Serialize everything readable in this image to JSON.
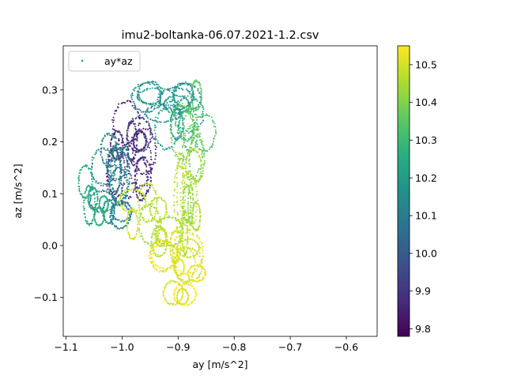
{
  "chart_data": {
    "type": "scatter",
    "title": "imu2-boltanka-06.07.2021-1.2.csv",
    "xlabel": "ay [m/s^2]",
    "ylabel": "az [m/s^2]",
    "xlim": [
      -1.105,
      -0.545
    ],
    "ylim": [
      -0.175,
      0.385
    ],
    "xticks": [
      -1.1,
      -1.0,
      -0.9,
      -0.8,
      -0.7,
      -0.6
    ],
    "xtick_labels": [
      "−1.1",
      "−1.0",
      "−0.9",
      "−0.8",
      "−0.7",
      "−0.6"
    ],
    "yticks": [
      -0.1,
      0.0,
      0.1,
      0.2,
      0.3
    ],
    "ytick_labels": [
      "−0.1",
      "0.0",
      "0.1",
      "0.2",
      "0.3"
    ],
    "legend": {
      "label": "ay*az",
      "location": "upper-left"
    },
    "colorbar": {
      "colormap": "viridis",
      "range": [
        9.78,
        10.55
      ],
      "ticks": [
        9.8,
        9.9,
        10.0,
        10.1,
        10.2,
        10.3,
        10.4,
        10.5
      ],
      "tick_labels": [
        "9.8",
        "9.9",
        "10.0",
        "10.1",
        "10.2",
        "10.3",
        "10.4",
        "10.5"
      ]
    },
    "grid": false,
    "series": [
      {
        "name": "ay*az",
        "color_by": "|a| [colorbar]",
        "clusters": [
          {
            "ay": -0.98,
            "az": 0.19,
            "ay_spread": 0.035,
            "az_spread": 0.065,
            "c": 9.87,
            "count": 700
          },
          {
            "ay": -1.02,
            "az": 0.12,
            "ay_spread": 0.03,
            "az_spread": 0.07,
            "c": 10.13,
            "count": 600
          },
          {
            "ay": -0.92,
            "az": 0.25,
            "ay_spread": 0.04,
            "az_spread": 0.05,
            "c": 10.18,
            "count": 650
          },
          {
            "ay": -0.87,
            "az": 0.23,
            "ay_spread": 0.025,
            "az_spread": 0.07,
            "c": 10.36,
            "count": 400
          },
          {
            "ay": -0.88,
            "az": 0.08,
            "ay_spread": 0.02,
            "az_spread": 0.09,
            "c": 10.46,
            "count": 500
          },
          {
            "ay": -0.9,
            "az": -0.05,
            "ay_spread": 0.035,
            "az_spread": 0.05,
            "c": 10.52,
            "count": 700
          },
          {
            "ay": -0.95,
            "az": 0.05,
            "ay_spread": 0.035,
            "az_spread": 0.05,
            "c": 10.47,
            "count": 450
          },
          {
            "ay": -1.05,
            "az": 0.1,
            "ay_spread": 0.018,
            "az_spread": 0.05,
            "c": 10.26,
            "count": 300
          }
        ]
      }
    ]
  }
}
